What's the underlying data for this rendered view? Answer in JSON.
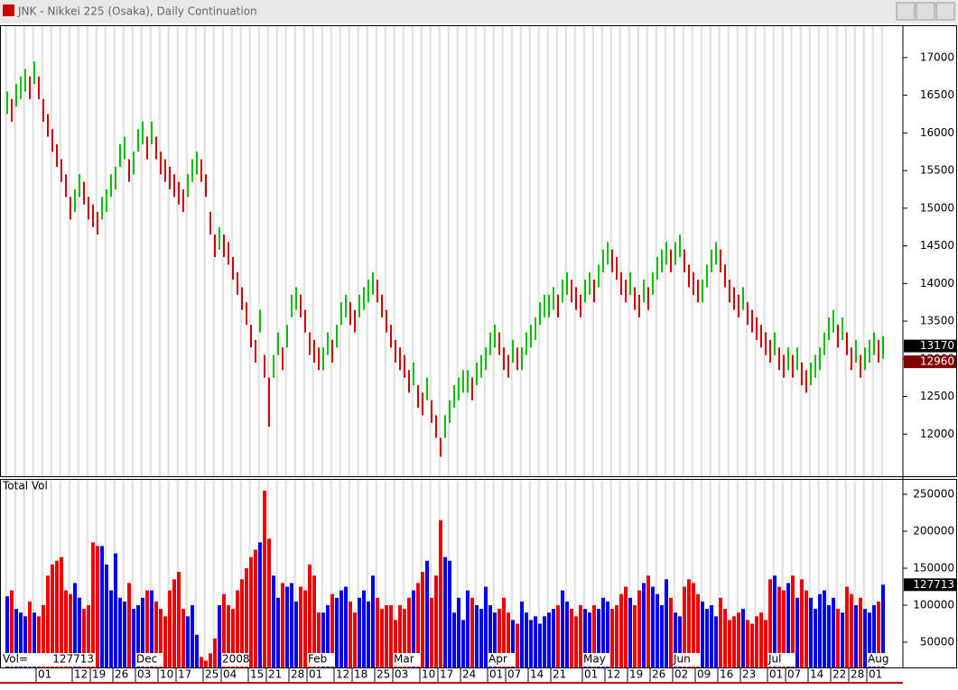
{
  "chart_data": [
    {
      "type": "range_bar",
      "title": "JNK - Nikkei 225 (Osaka), Daily Continuation",
      "up_color": "#00c000",
      "down_color": "#d00000",
      "ylim": [
        11440,
        17430
      ],
      "yticks": [
        12000,
        12500,
        13000,
        13500,
        14000,
        14500,
        15000,
        15500,
        16000,
        16500,
        17000
      ],
      "markers": [
        {
          "value": 13170,
          "color": "#000000"
        },
        {
          "value": 12960,
          "color": "#800000"
        }
      ],
      "categories": [
        null,
        null,
        null,
        null,
        null,
        null,
        null,
        "01",
        null,
        null,
        null,
        null,
        null,
        null,
        null,
        "12",
        null,
        null,
        null,
        "19",
        null,
        null,
        null,
        null,
        "26",
        null,
        null,
        null,
        null,
        "03",
        null,
        null,
        null,
        null,
        "10",
        null,
        null,
        null,
        "17",
        null,
        null,
        null,
        null,
        null,
        "25",
        null,
        null,
        null,
        "04",
        null,
        null,
        null,
        null,
        null,
        "15",
        null,
        null,
        null,
        "21",
        null,
        null,
        null,
        null,
        "28",
        null,
        null,
        null,
        "01",
        null,
        null,
        null,
        null,
        null,
        "12",
        null,
        null,
        null,
        "18",
        null,
        null,
        null,
        null,
        "25",
        null,
        null,
        null,
        "03",
        null,
        null,
        null,
        null,
        null,
        "10",
        null,
        null,
        null,
        "17",
        null,
        null,
        null,
        null,
        "24",
        null,
        null,
        null,
        null,
        null,
        "01",
        null,
        null,
        null,
        "07",
        null,
        null,
        null,
        null,
        "14",
        null,
        null,
        null,
        null,
        "21",
        null,
        null,
        null,
        null,
        null,
        null,
        "01",
        null,
        null,
        null,
        null,
        "12",
        null,
        null,
        null,
        null,
        "19",
        null,
        null,
        null,
        null,
        "26",
        null,
        null,
        null,
        null,
        "02",
        null,
        null,
        null,
        null,
        "09",
        null,
        null,
        null,
        null,
        "16",
        null,
        null,
        null,
        null,
        "23",
        null,
        null,
        null,
        null,
        null,
        "01",
        null,
        null,
        null,
        "07",
        null,
        null,
        null,
        null,
        "14",
        null,
        null,
        null,
        null,
        "22",
        null,
        null,
        null,
        "28",
        null,
        null,
        null,
        "01",
        null,
        null,
        null
      ],
      "high": [
        16550,
        16450,
        16650,
        16750,
        16850,
        16750,
        16950,
        16750,
        16450,
        16250,
        16050,
        15850,
        15650,
        15450,
        15150,
        15250,
        15450,
        15350,
        15150,
        15050,
        14950,
        15150,
        15250,
        15450,
        15550,
        15850,
        15950,
        15650,
        15750,
        16050,
        16150,
        15950,
        16150,
        15950,
        15750,
        15650,
        15550,
        15450,
        15350,
        15250,
        15450,
        15650,
        15750,
        15650,
        15450,
        14950,
        14650,
        14750,
        14650,
        14550,
        14350,
        14150,
        13950,
        13750,
        13450,
        13250,
        13650,
        13050,
        12750,
        13050,
        13350,
        13150,
        13450,
        13850,
        13950,
        13850,
        13650,
        13350,
        13250,
        13150,
        13150,
        13350,
        13250,
        13450,
        13750,
        13850,
        13750,
        13650,
        13850,
        13950,
        14050,
        14150,
        14050,
        13850,
        13650,
        13450,
        13250,
        13150,
        13050,
        12850,
        12950,
        12650,
        12550,
        12750,
        12450,
        12250,
        11950,
        12250,
        12450,
        12650,
        12750,
        12850,
        12850,
        12750,
        12950,
        13050,
        13150,
        13350,
        13450,
        13350,
        13150,
        13050,
        13250,
        13150,
        13150,
        13350,
        13450,
        13550,
        13750,
        13850,
        13850,
        13950,
        13850,
        14050,
        14150,
        14050,
        13950,
        13850,
        14050,
        14150,
        14050,
        14250,
        14450,
        14550,
        14450,
        14350,
        14150,
        14050,
        14150,
        13950,
        13850,
        14050,
        13950,
        14150,
        14350,
        14450,
        14550,
        14450,
        14550,
        14650,
        14450,
        14250,
        14150,
        14050,
        14050,
        14250,
        14450,
        14550,
        14450,
        14250,
        14050,
        13950,
        13850,
        13950,
        13750,
        13650,
        13550,
        13450,
        13350,
        13250,
        13350,
        13150,
        13050,
        13150,
        13050,
        13150,
        12950,
        12850,
        12950,
        13050,
        13150,
        13350,
        13550,
        13650,
        13450,
        13550,
        13350,
        13150,
        13250,
        13050,
        13150,
        13250,
        13350,
        13250,
        13300
      ],
      "low": [
        16250,
        16150,
        16350,
        16450,
        16550,
        16450,
        16650,
        16450,
        16150,
        15950,
        15750,
        15550,
        15350,
        15150,
        14850,
        14950,
        15150,
        15050,
        14850,
        14750,
        14650,
        14850,
        14950,
        15150,
        15250,
        15550,
        15650,
        15350,
        15450,
        15750,
        15850,
        15650,
        15850,
        15650,
        15450,
        15350,
        15250,
        15150,
        15050,
        14950,
        15150,
        15350,
        15450,
        15350,
        15150,
        14650,
        14350,
        14450,
        14350,
        14250,
        14050,
        13850,
        13650,
        13450,
        13150,
        12950,
        13350,
        12750,
        12100,
        12750,
        13050,
        12850,
        13150,
        13550,
        13650,
        13550,
        13350,
        13050,
        12950,
        12850,
        12850,
        13050,
        12950,
        13150,
        13450,
        13550,
        13450,
        13350,
        13550,
        13650,
        13750,
        13850,
        13750,
        13550,
        13350,
        13150,
        12950,
        12850,
        12750,
        12550,
        12650,
        12350,
        12250,
        12450,
        12150,
        11950,
        11700,
        11950,
        12150,
        12350,
        12450,
        12550,
        12550,
        12450,
        12650,
        12750,
        12850,
        13050,
        13150,
        13050,
        12850,
        12750,
        12950,
        12850,
        12850,
        13050,
        13150,
        13250,
        13450,
        13550,
        13550,
        13650,
        13550,
        13750,
        13850,
        13750,
        13650,
        13550,
        13750,
        13850,
        13750,
        13950,
        14150,
        14250,
        14150,
        14050,
        13850,
        13750,
        13850,
        13650,
        13550,
        13750,
        13650,
        13850,
        14050,
        14150,
        14250,
        14150,
        14250,
        14350,
        14150,
        13950,
        13850,
        13750,
        13750,
        13950,
        14150,
        14250,
        14150,
        13950,
        13750,
        13650,
        13550,
        13650,
        13450,
        13350,
        13250,
        13150,
        13050,
        12950,
        13050,
        12850,
        12750,
        12850,
        12750,
        12850,
        12650,
        12550,
        12650,
        12750,
        12850,
        13050,
        13250,
        13350,
        13150,
        13250,
        13050,
        12850,
        12950,
        12750,
        12850,
        12950,
        13050,
        12950,
        13000
      ]
    },
    {
      "type": "bar",
      "title": "Total Vol",
      "last_label": "Vol=",
      "up_color": "#0000ee",
      "down_color": "#ee0000",
      "ylim": [
        15850,
        269500
      ],
      "yticks": [
        50000,
        100000,
        150000,
        200000,
        250000
      ],
      "month_labels": [
        null,
        null,
        null,
        null,
        null,
        null,
        null,
        null,
        null,
        null,
        null,
        null,
        null,
        null,
        null,
        null,
        null,
        null,
        null,
        null,
        null,
        null,
        null,
        null,
        null,
        null,
        null,
        null,
        null,
        "Dec",
        null,
        null,
        null,
        null,
        null,
        null,
        null,
        null,
        null,
        null,
        null,
        null,
        null,
        null,
        null,
        null,
        null,
        null,
        "2008",
        null,
        null,
        null,
        null,
        null,
        null,
        null,
        null,
        null,
        null,
        null,
        null,
        null,
        null,
        null,
        null,
        null,
        null,
        "Feb",
        null,
        null,
        null,
        null,
        null,
        null,
        null,
        null,
        null,
        null,
        null,
        null,
        null,
        null,
        null,
        null,
        null,
        null,
        "Mar",
        null,
        null,
        null,
        null,
        null,
        null,
        null,
        null,
        null,
        null,
        null,
        null,
        null,
        null,
        null,
        null,
        null,
        null,
        null,
        null,
        "Apr",
        null,
        null,
        null,
        null,
        null,
        null,
        null,
        null,
        null,
        null,
        null,
        null,
        null,
        null,
        null,
        null,
        null,
        null,
        null,
        null,
        "May",
        null,
        null,
        null,
        null,
        null,
        null,
        null,
        null,
        null,
        null,
        null,
        null,
        null,
        null,
        null,
        null,
        null,
        null,
        null,
        "Jun",
        null,
        null,
        null,
        null,
        null,
        null,
        null,
        null,
        null,
        null,
        null,
        null,
        null,
        null,
        null,
        null,
        null,
        null,
        null,
        null,
        "Jul",
        null,
        null,
        null,
        null,
        null,
        null,
        null,
        null,
        null,
        null,
        null,
        null,
        null,
        null,
        null,
        null,
        null,
        null,
        null,
        null,
        null,
        "Aug",
        null,
        null,
        null
      ],
      "values": [
        112000,
        120000,
        95000,
        90000,
        85000,
        105000,
        90000,
        85000,
        100000,
        140000,
        155000,
        160000,
        165000,
        120000,
        115000,
        130000,
        110000,
        95000,
        100000,
        185000,
        180000,
        180000,
        155000,
        120000,
        170000,
        110000,
        105000,
        130000,
        95000,
        100000,
        110000,
        120000,
        120000,
        105000,
        95000,
        85000,
        120000,
        135000,
        145000,
        95000,
        85000,
        100000,
        60000,
        30000,
        25000,
        35000,
        55000,
        100000,
        115000,
        100000,
        95000,
        120000,
        135000,
        150000,
        165000,
        175000,
        185000,
        255000,
        190000,
        140000,
        110000,
        130000,
        125000,
        130000,
        105000,
        125000,
        120000,
        155000,
        140000,
        90000,
        90000,
        100000,
        115000,
        110000,
        120000,
        125000,
        105000,
        90000,
        110000,
        120000,
        105000,
        140000,
        110000,
        95000,
        100000,
        100000,
        80000,
        100000,
        95000,
        110000,
        120000,
        130000,
        145000,
        160000,
        110000,
        140000,
        215000,
        165000,
        160000,
        90000,
        110000,
        80000,
        120000,
        110000,
        100000,
        95000,
        125000,
        100000,
        90000,
        95000,
        110000,
        90000,
        80000,
        75000,
        105000,
        90000,
        80000,
        85000,
        75000,
        85000,
        90000,
        95000,
        100000,
        120000,
        105000,
        95000,
        85000,
        100000,
        95000,
        90000,
        100000,
        95000,
        110000,
        105000,
        95000,
        100000,
        115000,
        125000,
        110000,
        100000,
        120000,
        130000,
        140000,
        125000,
        115000,
        100000,
        135000,
        110000,
        90000,
        85000,
        125000,
        135000,
        130000,
        115000,
        105000,
        95000,
        100000,
        85000,
        110000,
        95000,
        80000,
        85000,
        90000,
        95000,
        80000,
        75000,
        85000,
        90000,
        80000,
        135000,
        140000,
        125000,
        120000,
        130000,
        140000,
        110000,
        135000,
        120000,
        110000,
        95000,
        115000,
        120000,
        100000,
        110000,
        95000,
        90000,
        125000,
        115000,
        100000,
        110000,
        95000,
        90000,
        100000,
        105000,
        127713
      ]
    }
  ]
}
